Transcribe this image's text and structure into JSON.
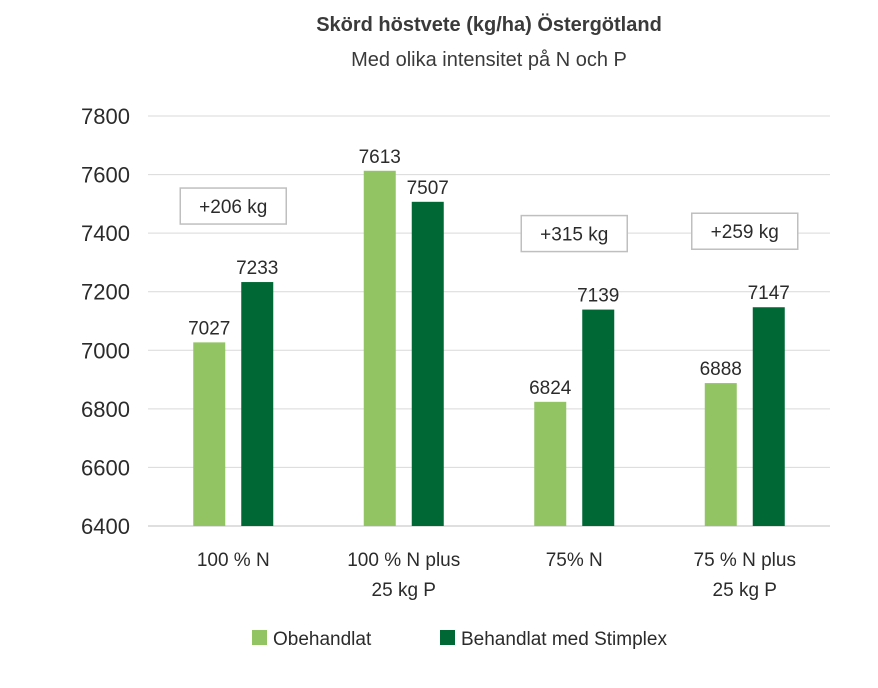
{
  "chart_data": {
    "type": "bar",
    "title": "Skörd höstvete (kg/ha) Östergötland",
    "subtitle": "Med olika intensitet på N och P",
    "categories": [
      [
        "100 % N"
      ],
      [
        "100 % N plus",
        "25 kg P"
      ],
      [
        "75% N"
      ],
      [
        "75 % N plus",
        "25 kg P"
      ]
    ],
    "series": [
      {
        "name": "Obehandlat",
        "color": "#92c464",
        "values": [
          7027,
          7613,
          6824,
          6888
        ],
        "labels": [
          "7027",
          "7613",
          "6824",
          "6888"
        ]
      },
      {
        "name": "Behandlat med Stimplex",
        "color": "#006835",
        "values": [
          7233,
          7507,
          7139,
          7147
        ],
        "labels": [
          "7233",
          "7507",
          "7139",
          "7147"
        ]
      }
    ],
    "annotations": [
      "+206 kg",
      "",
      "+315 kg",
      "+259 kg"
    ],
    "ylim": [
      6400,
      7800
    ],
    "yticks": [
      "6400",
      "6600",
      "6800",
      "7000",
      "7200",
      "7400",
      "7600",
      "7800"
    ],
    "grid": true,
    "legend_position": "bottom"
  }
}
